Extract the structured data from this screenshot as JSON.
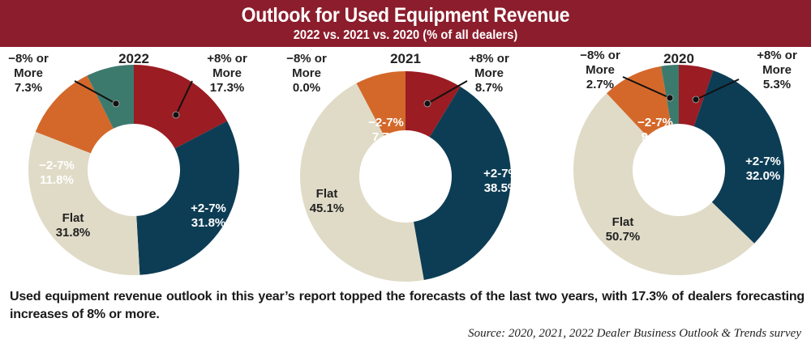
{
  "header": {
    "title": "Outlook for Used Equipment Revenue",
    "subtitle": "2022 vs. 2021 vs. 2020 (% of all dealers)"
  },
  "colors": {
    "banner": "#8c1d2c",
    "plus8": "#9b1c22",
    "plus27": "#0d3d55",
    "flat": "#e0dbc7",
    "minus27": "#d4682a",
    "minus8": "#3d7a6e"
  },
  "chart_data": [
    {
      "type": "pie",
      "donut": true,
      "title": "2022",
      "categories": [
        "+8% or More",
        "+2-7%",
        "Flat",
        "−2-7%",
        "−8% or More"
      ],
      "values": [
        17.3,
        31.8,
        31.8,
        11.8,
        7.3
      ],
      "labels": [
        "+8% or|More|17.3%",
        "+2-7%|31.8%",
        "Flat|31.8%",
        "−2-7%|11.8%",
        "−8% or|More|7.3%"
      ]
    },
    {
      "type": "pie",
      "donut": true,
      "title": "2021",
      "categories": [
        "+8% or More",
        "+2-7%",
        "Flat",
        "−2-7%",
        "−8% or More"
      ],
      "values": [
        8.7,
        38.5,
        45.1,
        7.7,
        0.0
      ],
      "labels": [
        "+8% or|More|8.7%",
        "+2-7%|38.5%",
        "Flat|45.1%",
        "−2-7%|7.7%",
        "−8% or|More|0.0%"
      ]
    },
    {
      "type": "pie",
      "donut": true,
      "title": "2020",
      "categories": [
        "+8% or More",
        "+2-7%",
        "Flat",
        "−2-7%",
        "−8% or More"
      ],
      "values": [
        5.3,
        32.0,
        50.7,
        9.3,
        2.7
      ],
      "labels": [
        "+8% or|More|5.3%",
        "+2-7%|32.0%",
        "Flat|50.7%",
        "−2-7%|9.3%",
        "−8% or|More|2.7%"
      ]
    }
  ],
  "caption": "Used equipment revenue outlook in this year’s report topped the forecasts of the last two years, with 17.3% of dealers forecasting increases of 8% or more.",
  "source": "Source: 2020, 2021, 2022 Dealer Business Outlook & Trends survey"
}
